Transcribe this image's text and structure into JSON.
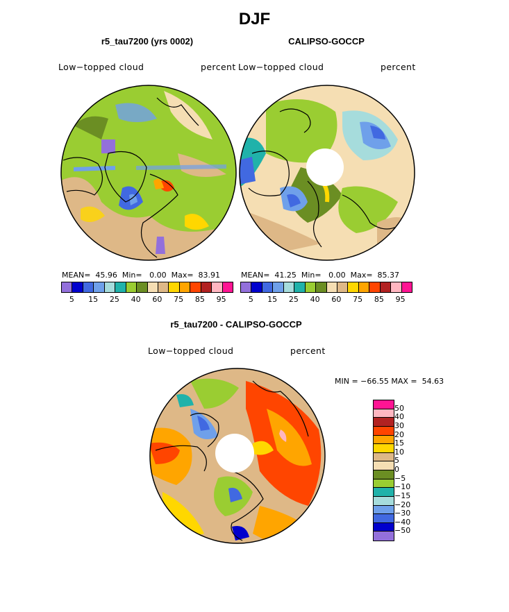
{
  "figure_title": "DJF",
  "panels": {
    "model": {
      "title": "r5_tau7200 (yrs 0002)",
      "left_label": "Low−topped cloud",
      "right_label": "percent",
      "stats": "MEAN=  45.96  Min=   0.00  Max=  83.91"
    },
    "obs": {
      "title": "CALIPSO-GOCCP",
      "left_label": "Low−topped cloud",
      "right_label": "percent",
      "stats": "MEAN=  41.25  Min=   0.00  Max=  85.37"
    },
    "diff": {
      "title": "r5_tau7200 - CALIPSO-GOCCP",
      "left_label": "Low−topped cloud",
      "right_label": "percent",
      "stats": "MIN = −66.55 MAX =  54.63"
    }
  },
  "colorbar_abs": {
    "colors": [
      "#9370db",
      "#0000cd",
      "#4169e1",
      "#6fa0ea",
      "#a6dcdc",
      "#20b2aa",
      "#9acd32",
      "#6b8e23",
      "#f5deb3",
      "#deb887",
      "#ffd700",
      "#ffa500",
      "#ff4500",
      "#b22222",
      "#ffb6c1",
      "#ff1493"
    ],
    "tick_labels": [
      "5",
      "15",
      "25",
      "40",
      "60",
      "75",
      "85",
      "95"
    ]
  },
  "colorbar_diff": {
    "colors": [
      "#ff1493",
      "#ffb6c1",
      "#b22222",
      "#ff4500",
      "#ffa500",
      "#ffd700",
      "#deb887",
      "#f5deb3",
      "#6b8e23",
      "#9acd32",
      "#20b2aa",
      "#a6dcdc",
      "#6fa0ea",
      "#4169e1",
      "#0000cd",
      "#9370db"
    ],
    "tick_labels": [
      "50",
      "40",
      "30",
      "20",
      "15",
      "10",
      "5",
      "0",
      "−5",
      "−10",
      "−15",
      "−20",
      "−30",
      "−40",
      "−50"
    ]
  }
}
